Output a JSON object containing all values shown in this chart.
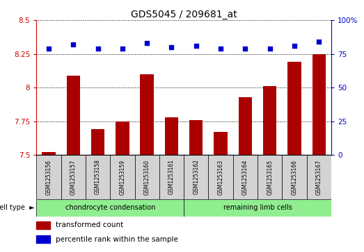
{
  "title": "GDS5045 / 209681_at",
  "samples": [
    "GSM1253156",
    "GSM1253157",
    "GSM1253158",
    "GSM1253159",
    "GSM1253160",
    "GSM1253161",
    "GSM1253162",
    "GSM1253163",
    "GSM1253164",
    "GSM1253165",
    "GSM1253166",
    "GSM1253167"
  ],
  "transformed_count": [
    7.52,
    8.09,
    7.69,
    7.75,
    8.1,
    7.78,
    7.76,
    7.67,
    7.93,
    8.01,
    8.19,
    8.25
  ],
  "percentile_rank": [
    79,
    82,
    79,
    79,
    83,
    80,
    81,
    79,
    79,
    79,
    81,
    84
  ],
  "ylim_left": [
    7.5,
    8.5
  ],
  "ylim_right": [
    0,
    100
  ],
  "yticks_left": [
    7.5,
    7.75,
    8.0,
    8.25,
    8.5
  ],
  "yticks_right": [
    0,
    25,
    50,
    75,
    100
  ],
  "bar_color": "#AA0000",
  "dot_color": "#0000CC",
  "bg_plot": "#ffffff",
  "bg_sample": "#d3d3d3",
  "green_color": "#90EE90",
  "cell_groups": [
    {
      "label": "chondrocyte condensation",
      "start": 0,
      "end": 5
    },
    {
      "label": "remaining limb cells",
      "start": 6,
      "end": 11
    }
  ]
}
